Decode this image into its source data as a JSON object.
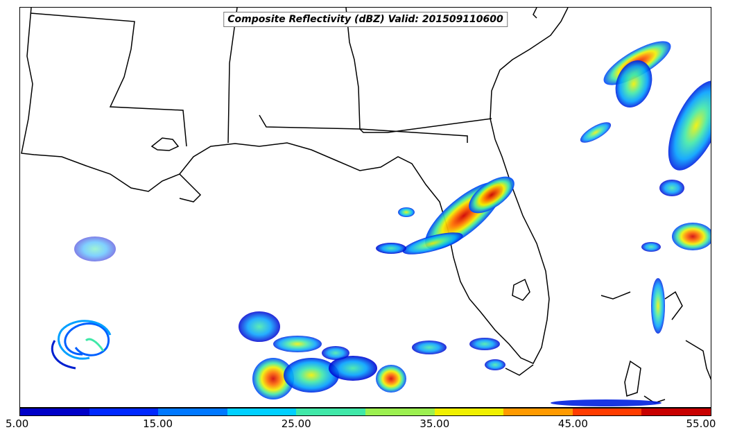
{
  "map": {
    "title": "Composite Reflectivity (dBZ) Valid: 201509110600"
  },
  "colorbar": {
    "ticks": [
      "5.00",
      "15.00",
      "25.00",
      "35.00",
      "45.00",
      "55.00"
    ],
    "range": [
      5,
      55
    ],
    "interval": 5,
    "colors": [
      "#0000c8",
      "#0028ff",
      "#0078ff",
      "#00d0ff",
      "#40e8a8",
      "#9cf050",
      "#f0f000",
      "#ff9a00",
      "#ff3c00",
      "#c80000"
    ]
  }
}
